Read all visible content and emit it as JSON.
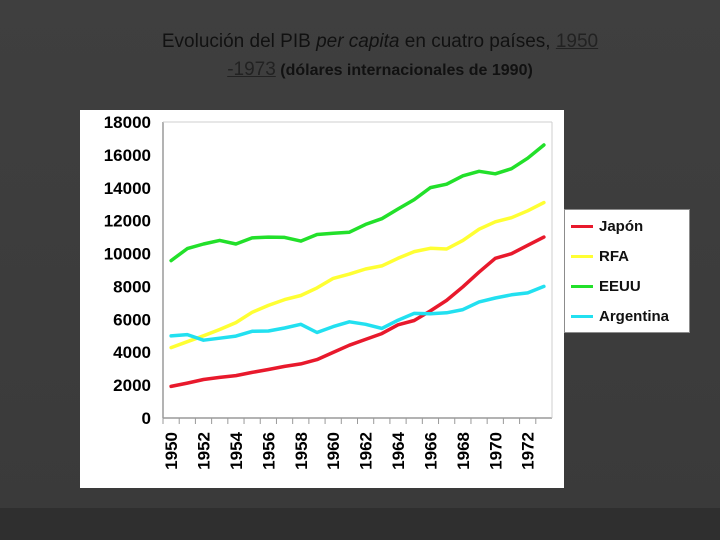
{
  "title": {
    "line1_pre": "Evolución del PIB ",
    "line1_italic": "per capita",
    "line1_post": " en cuatro países, ",
    "line1_link": "1950",
    "line2_link": "-1973",
    "line2_small": " (dólares internacionales de 1990)"
  },
  "colors": {
    "background": "#3c3c3c",
    "Japón": "#e8192c",
    "RFA": "#ffff33",
    "EEUU": "#22e02a",
    "Argentina": "#22e0f0"
  },
  "chart_data": {
    "type": "line",
    "title": "Evolución del PIB per capita en cuatro países, 1950 -1973 (dólares internacionales de 1990)",
    "xlabel": "",
    "ylabel": "",
    "x": [
      1950,
      1951,
      1952,
      1953,
      1954,
      1955,
      1956,
      1957,
      1958,
      1959,
      1960,
      1961,
      1962,
      1963,
      1964,
      1965,
      1966,
      1967,
      1968,
      1969,
      1970,
      1971,
      1972,
      1973
    ],
    "x_tick_labels": [
      "1950",
      "1952",
      "1954",
      "1956",
      "1958",
      "1960",
      "1962",
      "1964",
      "1966",
      "1968",
      "1970",
      "1972"
    ],
    "ylim": [
      0,
      18000
    ],
    "y_ticks": [
      0,
      2000,
      4000,
      6000,
      8000,
      10000,
      12000,
      14000,
      16000,
      18000
    ],
    "grid": false,
    "legend_position": "right",
    "series": [
      {
        "name": "Japón",
        "values": [
          1920,
          2120,
          2340,
          2470,
          2580,
          2770,
          2950,
          3140,
          3290,
          3550,
          3990,
          4430,
          4780,
          5130,
          5670,
          5930,
          6510,
          7150,
          7980,
          8870,
          9710,
          9990,
          10500,
          11000
        ]
      },
      {
        "name": "RFA",
        "values": [
          4280,
          4640,
          5000,
          5380,
          5800,
          6430,
          6850,
          7200,
          7450,
          7910,
          8490,
          8750,
          9060,
          9250,
          9710,
          10120,
          10320,
          10280,
          10800,
          11480,
          11930,
          12180,
          12600,
          13100
        ]
      },
      {
        "name": "EEUU",
        "values": [
          9570,
          10300,
          10580,
          10800,
          10580,
          10950,
          11000,
          10980,
          10760,
          11160,
          11230,
          11300,
          11770,
          12120,
          12710,
          13280,
          14010,
          14220,
          14730,
          15000,
          14850,
          15160,
          15800,
          16600
        ]
      },
      {
        "name": "Argentina",
        "values": [
          4990,
          5070,
          4730,
          4850,
          4980,
          5270,
          5290,
          5470,
          5700,
          5200,
          5560,
          5850,
          5700,
          5450,
          5950,
          6360,
          6340,
          6400,
          6590,
          7060,
          7300,
          7490,
          7610,
          8000
        ]
      }
    ]
  }
}
